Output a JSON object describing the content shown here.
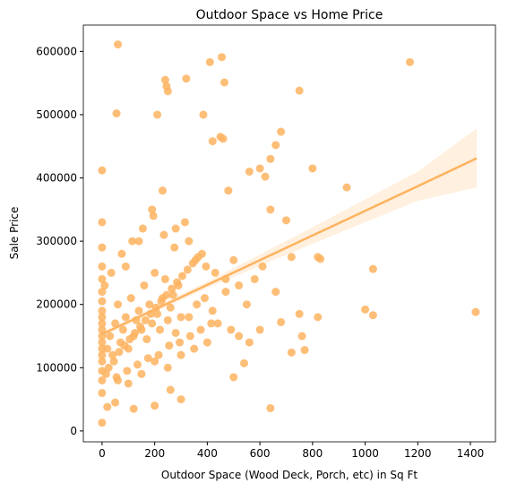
{
  "chart_data": {
    "type": "scatter",
    "title": "Outdoor Space vs Home Price",
    "xlabel": "Outdoor Space (Wood Deck, Porch, etc) in Sq Ft",
    "ylabel": "Sale Price",
    "color": "#fdb35f",
    "x": [
      60,
      0,
      55,
      455,
      410,
      1170,
      750,
      240,
      245,
      250,
      320,
      385,
      465,
      210,
      680,
      660,
      450,
      460,
      420,
      800,
      930,
      1000,
      1030,
      1030,
      1420,
      640,
      0,
      820,
      830,
      820,
      760,
      770,
      720,
      750,
      680,
      640,
      600,
      620,
      560,
      480,
      500,
      520,
      550,
      580,
      600,
      560,
      500,
      540,
      610,
      640,
      660,
      700,
      720,
      50,
      20,
      200,
      300,
      260,
      120,
      0,
      0,
      0,
      0,
      0,
      0,
      0,
      0,
      0,
      0,
      0,
      0,
      0,
      0,
      0,
      0,
      0,
      0,
      20,
      30,
      40,
      50,
      60,
      70,
      80,
      90,
      100,
      110,
      120,
      130,
      140,
      150,
      160,
      170,
      180,
      190,
      200,
      210,
      220,
      230,
      240,
      250,
      260,
      270,
      280,
      290,
      300,
      25,
      45,
      65,
      85,
      105,
      125,
      145,
      165,
      185,
      205,
      225,
      245,
      265,
      285,
      305,
      325,
      345,
      365,
      35,
      75,
      115,
      155,
      195,
      235,
      275,
      315,
      355,
      395,
      15,
      55,
      95,
      135,
      175,
      215,
      255,
      295,
      335,
      375,
      415,
      10,
      90,
      140,
      190,
      230,
      280,
      330,
      380,
      430,
      470,
      60,
      100,
      150,
      200,
      250,
      300,
      350,
      400,
      330,
      360,
      390,
      420,
      440,
      470,
      490,
      520
    ],
    "values": [
      611000,
      412000,
      502000,
      591000,
      583000,
      583000,
      538000,
      555000,
      545000,
      537000,
      557000,
      500000,
      551000,
      500000,
      473000,
      452000,
      465000,
      462000,
      458000,
      415000,
      385000,
      192000,
      183000,
      256000,
      188000,
      36000,
      13000,
      275000,
      272000,
      180000,
      150000,
      128000,
      124000,
      185000,
      172000,
      430000,
      415000,
      402000,
      410000,
      380000,
      270000,
      230000,
      200000,
      240000,
      160000,
      140000,
      85000,
      107000,
      260000,
      350000,
      220000,
      333000,
      275000,
      45000,
      38000,
      40000,
      50000,
      65000,
      35000,
      60000,
      80000,
      95000,
      110000,
      120000,
      130000,
      140000,
      150000,
      160000,
      170000,
      180000,
      190000,
      205000,
      220000,
      240000,
      260000,
      290000,
      330000,
      130000,
      150000,
      120000,
      170000,
      200000,
      140000,
      160000,
      180000,
      130000,
      210000,
      150000,
      175000,
      190000,
      160000,
      230000,
      145000,
      200000,
      170000,
      250000,
      185000,
      160000,
      210000,
      240000,
      175000,
      195000,
      215000,
      155000,
      230000,
      180000,
      100000,
      110000,
      125000,
      135000,
      145000,
      155000,
      165000,
      175000,
      185000,
      195000,
      205000,
      215000,
      225000,
      235000,
      245000,
      255000,
      265000,
      275000,
      250000,
      280000,
      300000,
      320000,
      340000,
      310000,
      290000,
      330000,
      270000,
      260000,
      90000,
      85000,
      95000,
      105000,
      115000,
      120000,
      135000,
      140000,
      150000,
      160000,
      170000,
      230000,
      260000,
      300000,
      350000,
      380000,
      320000,
      300000,
      280000,
      250000,
      240000,
      80000,
      75000,
      90000,
      110000,
      100000,
      120000,
      130000,
      140000,
      180000,
      200000,
      210000,
      190000,
      170000,
      220000,
      160000,
      150000
    ],
    "line": {
      "x": [
        0,
        400,
        800,
        1200,
        1424
      ],
      "values": [
        153000,
        231000,
        309000,
        387000,
        431000
      ],
      "ci_upper": [
        157000,
        236000,
        322000,
        410000,
        478000
      ],
      "ci_lower": [
        149000,
        226000,
        296000,
        364000,
        385000
      ]
    },
    "xlim": [
      -71.2,
      1495.2
    ],
    "ylim": [
      -17154,
      641600
    ],
    "xticks": [
      0,
      200,
      400,
      600,
      800,
      1000,
      1200,
      1400
    ],
    "yticks": [
      0,
      100000,
      200000,
      300000,
      400000,
      500000,
      600000
    ]
  }
}
